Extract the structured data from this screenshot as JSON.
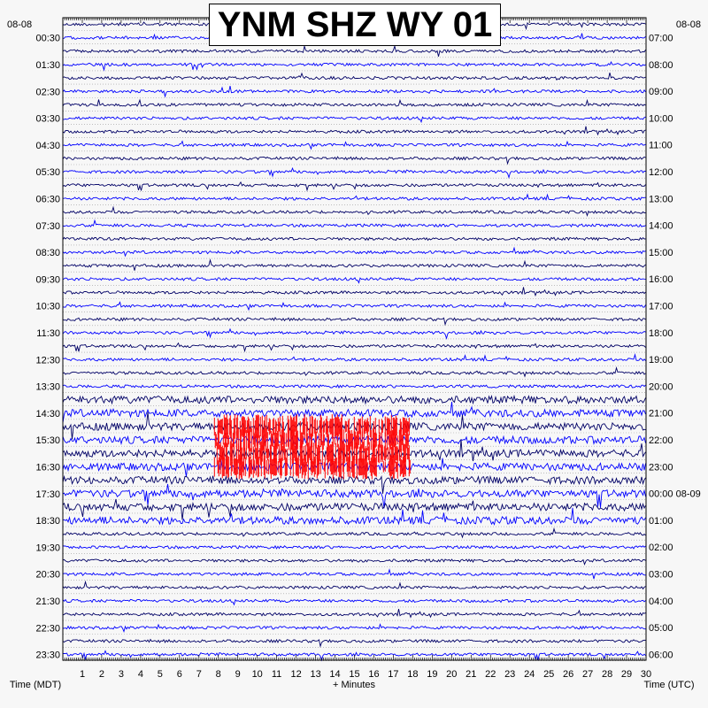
{
  "chart_data": {
    "type": "line",
    "title": "YNM SHZ WY 01",
    "date_left": "08-08",
    "date_right": "08-08",
    "left_time_labels": [
      "00:30",
      "01:30",
      "02:30",
      "03:30",
      "04:30",
      "05:30",
      "06:30",
      "07:30",
      "08:30",
      "09:30",
      "10:30",
      "11:30",
      "12:30",
      "13:30",
      "14:30",
      "15:30",
      "16:30",
      "17:30",
      "18:30",
      "19:30",
      "20:30",
      "21:30",
      "22:30",
      "23:30"
    ],
    "right_time_labels": [
      "07:00",
      "08:00",
      "09:00",
      "10:00",
      "11:00",
      "12:00",
      "13:00",
      "14:00",
      "15:00",
      "16:00",
      "17:00",
      "18:00",
      "19:00",
      "20:00",
      "21:00",
      "22:00",
      "23:00",
      "00:00 08-09",
      "01:00",
      "02:00",
      "03:00",
      "04:00",
      "05:00",
      "06:00"
    ],
    "x_tick_labels": [
      "1",
      "2",
      "3",
      "4",
      "5",
      "6",
      "7",
      "8",
      "9",
      "10",
      "11",
      "12",
      "13",
      "14",
      "15",
      "16",
      "17",
      "18",
      "19",
      "20",
      "21",
      "22",
      "23",
      "24",
      "25",
      "26",
      "27",
      "28",
      "29",
      "30"
    ],
    "xlim": [
      0,
      30
    ],
    "xlabel": "+ Minutes",
    "left_axis_label": "Time (MDT)",
    "right_axis_label": "Time (UTC)",
    "trace_count": 48,
    "trace_colors": [
      "#000066",
      "#0000ff"
    ],
    "clip_color": "#ff0000",
    "clip_bursts": [
      {
        "trace": 30,
        "x": [
          7.8,
          17.9
        ]
      },
      {
        "trace": 31,
        "x": [
          7.8,
          17.9
        ]
      },
      {
        "trace": 32,
        "x": [
          7.8,
          17.9
        ]
      },
      {
        "trace": 33,
        "x": [
          7.8,
          17.9
        ]
      }
    ]
  }
}
